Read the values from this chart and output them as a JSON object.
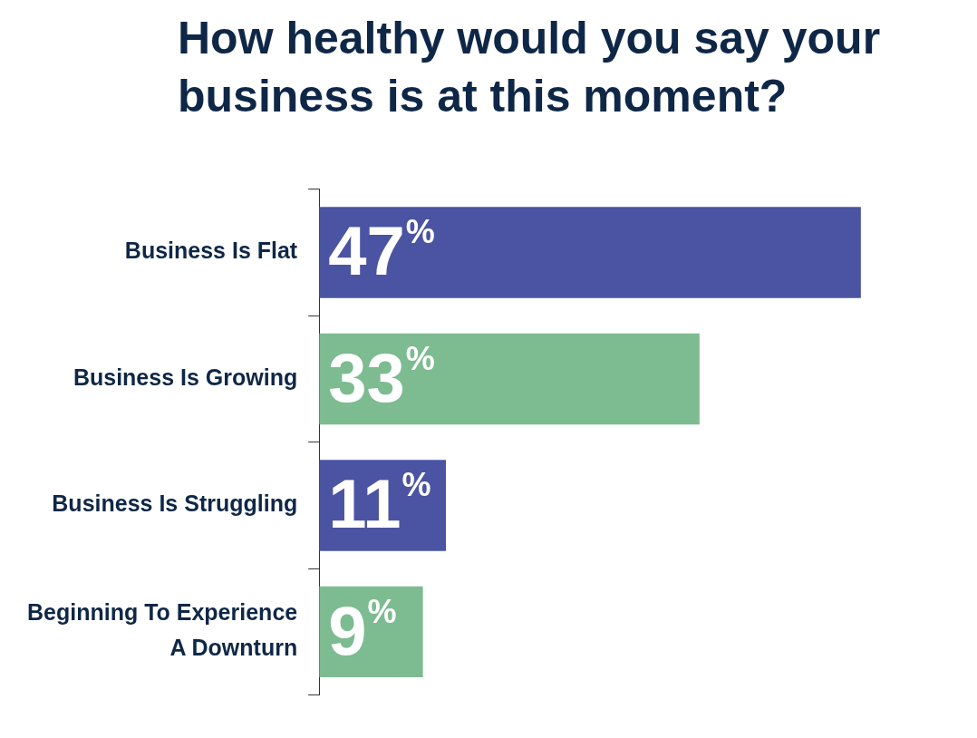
{
  "chart_data": {
    "type": "bar",
    "orientation": "horizontal",
    "title": "How healthy would you say your business is at this moment?",
    "categories": [
      "Business Is Flat",
      "Business Is Growing",
      "Business Is Struggling",
      "Beginning To Experience A Downturn"
    ],
    "values": [
      47,
      33,
      11,
      9
    ],
    "colors": [
      "#4a54a2",
      "#7dbb91",
      "#4a54a2",
      "#7dbb91"
    ],
    "value_labels": [
      "47%",
      "33%",
      "11%",
      "9%"
    ],
    "tick_labels": "y",
    "legend": false
  }
}
